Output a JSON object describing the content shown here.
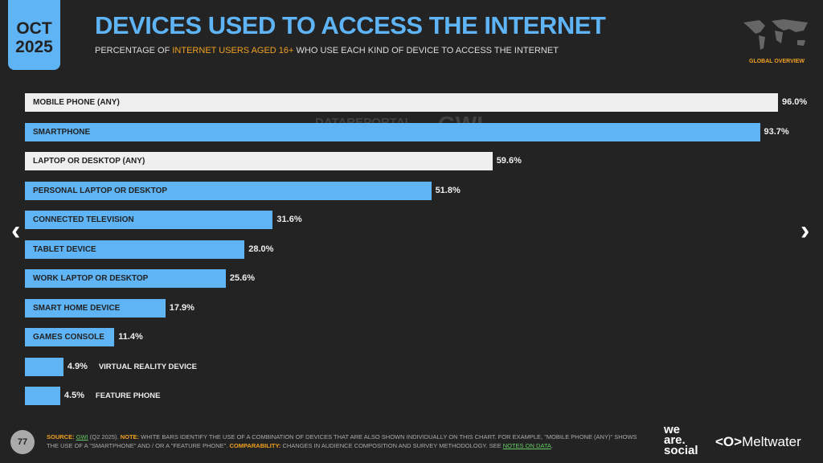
{
  "header": {
    "month": "OCT",
    "year": "2025",
    "title": "DEVICES USED TO ACCESS THE INTERNET",
    "subtitle_pre": "PERCENTAGE OF ",
    "subtitle_hl": "INTERNET USERS AGED 16+",
    "subtitle_post": " WHO USE EACH KIND OF DEVICE TO ACCESS THE INTERNET",
    "badge": "GLOBAL OVERVIEW"
  },
  "watermark": {
    "a": "DATAREPORTAL",
    "b": "GWI."
  },
  "colors": {
    "blue": "#5fb4f6",
    "white": "#efefef",
    "background": "#232323",
    "accent": "#f0a020"
  },
  "chart_data": {
    "type": "bar",
    "orientation": "horizontal",
    "xlim": [
      0,
      100
    ],
    "categories": [
      "MOBILE PHONE (ANY)",
      "SMARTPHONE",
      "LAPTOP OR DESKTOP (ANY)",
      "PERSONAL LAPTOP OR DESKTOP",
      "CONNECTED TELEVISION",
      "TABLET DEVICE",
      "WORK LAPTOP OR DESKTOP",
      "SMART HOME DEVICE",
      "GAMES CONSOLE",
      "VIRTUAL REALITY DEVICE",
      "FEATURE PHONE"
    ],
    "values": [
      96.0,
      93.7,
      59.6,
      51.8,
      31.6,
      28.0,
      25.6,
      17.9,
      11.4,
      4.9,
      4.5
    ],
    "labels": [
      "96.0%",
      "93.7%",
      "59.6%",
      "51.8%",
      "31.6%",
      "28.0%",
      "25.6%",
      "17.9%",
      "11.4%",
      "4.9%",
      "4.5%"
    ],
    "combination": [
      true,
      false,
      true,
      false,
      false,
      false,
      false,
      false,
      false,
      false,
      false
    ]
  },
  "footer": {
    "page": "77",
    "source_label": "SOURCE:",
    "source": "GWI",
    "source_rest": " (Q2 2025). ",
    "note_label": "NOTE:",
    "note": " WHITE BARS IDENTIFY THE USE OF A COMBINATION OF DEVICES THAT ARE ALSO SHOWN INDIVIDUALLY ON THIS CHART. FOR EXAMPLE, \"MOBILE PHONE (ANY)\" SHOWS THE USE OF A \"SMARTPHONE\" AND / OR A \"FEATURE PHONE\". ",
    "comp_label": "COMPARABILITY:",
    "comp": " CHANGES IN AUDIENCE COMPOSITION AND SURVEY METHODOLOGY. SEE ",
    "link": "NOTES ON DATA",
    "end": "."
  },
  "logos": {
    "we_are_social": "we are social",
    "meltwater": "Meltwater"
  },
  "nav": {
    "prev": "‹",
    "next": "›"
  }
}
